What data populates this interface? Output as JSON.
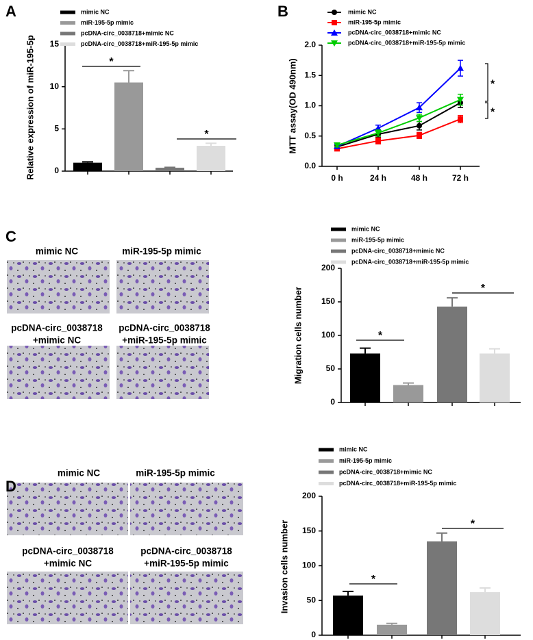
{
  "panel_labels": [
    "A",
    "B",
    "C",
    "D"
  ],
  "micrographs": {
    "C": [
      [
        "mimic NC"
      ],
      [
        "miR-195-5p mimic"
      ],
      [
        "pcDNA-circ_0038718",
        "+mimic NC"
      ],
      [
        "pcDNA-circ_0038718",
        "+miR-195-5p mimic"
      ]
    ],
    "D": [
      [
        "mimic NC"
      ],
      [
        "miR-195-5p mimic"
      ],
      [
        "pcDNA-circ_0038718",
        "+mimic NC"
      ],
      [
        "pcDNA-circ_0038718",
        "+miR-195-5p mimic"
      ]
    ]
  },
  "chart_data": [
    {
      "type": "bar",
      "y_label": "Relative expression of miR-195-5p",
      "ylim": [
        0,
        15
      ],
      "yticks": [
        0,
        5,
        10,
        15
      ],
      "series": [
        {
          "name": "mimic NC",
          "color": "#000000",
          "values": [
            1.0
          ],
          "errors": [
            0.1
          ]
        },
        {
          "name": "miR-195-5p mimic",
          "color": "#999999",
          "values": [
            10.5
          ],
          "errors": [
            1.4
          ]
        },
        {
          "name": "pcDNA-circ_0038718+mimic NC",
          "color": "#777777",
          "values": [
            0.4
          ],
          "errors": [
            0.05
          ]
        },
        {
          "name": "pcDNA-circ_0038718+miR-195-5p mimic",
          "color": "#dddddd",
          "values": [
            3.0
          ],
          "errors": [
            0.3
          ]
        }
      ],
      "annotations": [
        "*",
        "*"
      ]
    },
    {
      "type": "line",
      "y_label": "MTT assay(OD 490nm)",
      "categories": [
        "0 h",
        "24 h",
        "48 h",
        "72 h"
      ],
      "ylim": [
        0,
        2
      ],
      "yticks": [
        {
          "value": 0,
          "label": "0.0"
        },
        {
          "value": 0.5,
          "label": "0.5"
        },
        {
          "value": 1,
          "label": "1.0"
        },
        {
          "value": 1.5,
          "label": "1.5"
        },
        {
          "value": 2,
          "label": "2.0"
        }
      ],
      "series": [
        {
          "name": "mimic NC",
          "color": "#000000",
          "marker": "circle",
          "values": [
            0.32,
            0.53,
            0.67,
            1.05
          ],
          "errors": [
            0.03,
            0.05,
            0.07,
            0.08
          ]
        },
        {
          "name": "miR-195-5p mimic",
          "color": "#ff0000",
          "marker": "square",
          "values": [
            0.29,
            0.42,
            0.51,
            0.78
          ],
          "errors": [
            0.03,
            0.05,
            0.05,
            0.06
          ]
        },
        {
          "name": "pcDNA-circ_0038718+mimic NC",
          "color": "#0000ff",
          "marker": "triangle",
          "values": [
            0.33,
            0.63,
            0.97,
            1.62
          ],
          "errors": [
            0.03,
            0.05,
            0.08,
            0.13
          ]
        },
        {
          "name": "pcDNA-circ_0038718+miR-195-5p mimic",
          "color": "#00cc00",
          "marker": "triangle-down",
          "values": [
            0.35,
            0.55,
            0.8,
            1.1
          ],
          "errors": [
            0.03,
            0.05,
            0.06,
            0.09
          ]
        }
      ],
      "annotations": [
        "*",
        "*"
      ]
    },
    {
      "type": "bar",
      "y_label": "Migration cells number",
      "ylim": [
        0,
        200
      ],
      "yticks": [
        0,
        50,
        100,
        150,
        200
      ],
      "series": [
        {
          "name": "mimic NC",
          "color": "#000000",
          "values": [
            73
          ],
          "errors": [
            8
          ]
        },
        {
          "name": "miR-195-5p mimic",
          "color": "#999999",
          "values": [
            26
          ],
          "errors": [
            3
          ]
        },
        {
          "name": "pcDNA-circ_0038718+mimic NC",
          "color": "#777777",
          "values": [
            143
          ],
          "errors": [
            13
          ]
        },
        {
          "name": "pcDNA-circ_0038718+miR-195-5p mimic",
          "color": "#dddddd",
          "values": [
            73
          ],
          "errors": [
            7
          ]
        }
      ],
      "annotations": [
        "*",
        "*"
      ]
    },
    {
      "type": "bar",
      "y_label": "Invasion cells number",
      "ylim": [
        0,
        200
      ],
      "yticks": [
        0,
        50,
        100,
        150,
        200
      ],
      "series": [
        {
          "name": "mimic NC",
          "color": "#000000",
          "values": [
            57
          ],
          "errors": [
            6
          ]
        },
        {
          "name": "miR-195-5p mimic",
          "color": "#999999",
          "values": [
            15
          ],
          "errors": [
            2
          ]
        },
        {
          "name": "pcDNA-circ_0038718+mimic NC",
          "color": "#777777",
          "values": [
            135
          ],
          "errors": [
            12
          ]
        },
        {
          "name": "pcDNA-circ_0038718+miR-195-5p mimic",
          "color": "#dddddd",
          "values": [
            62
          ],
          "errors": [
            6
          ]
        }
      ],
      "annotations": [
        "*",
        "*"
      ]
    }
  ]
}
